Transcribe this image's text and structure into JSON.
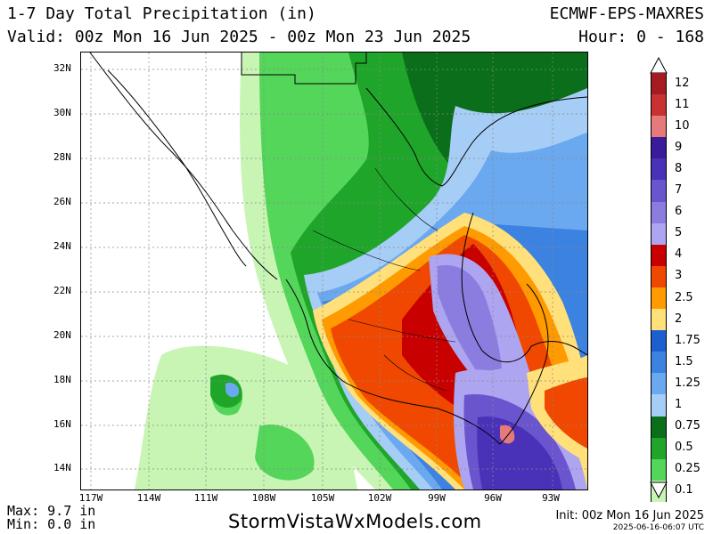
{
  "header": {
    "title": "1-7 Day Total Precipitation (in)",
    "valid": "Valid: 00z Mon 16 Jun 2025 - 00z Mon 23 Jun 2025",
    "model": "ECMWF-EPS-MAXRES",
    "hour": "Hour: 0 - 168"
  },
  "lat_labels": [
    "32N",
    "30N",
    "28N",
    "26N",
    "24N",
    "22N",
    "20N",
    "18N",
    "16N",
    "14N"
  ],
  "lon_labels": [
    "117W",
    "114W",
    "111W",
    "108W",
    "105W",
    "102W",
    "99W",
    "96W",
    "93W"
  ],
  "colorbar": {
    "items": [
      {
        "label": "12",
        "color": "#a61b22"
      },
      {
        "label": "11",
        "color": "#c83232"
      },
      {
        "label": "10",
        "color": "#e67a7a"
      },
      {
        "label": "9",
        "color": "#3a1b9a"
      },
      {
        "label": "8",
        "color": "#4a32b8"
      },
      {
        "label": "7",
        "color": "#6a55cf"
      },
      {
        "label": "6",
        "color": "#8b7ce0"
      },
      {
        "label": "5",
        "color": "#aea5f0"
      },
      {
        "label": "4",
        "color": "#c80000"
      },
      {
        "label": "3",
        "color": "#f04800"
      },
      {
        "label": "2.5",
        "color": "#ff9a00"
      },
      {
        "label": "2",
        "color": "#ffe07a"
      },
      {
        "label": "1.75",
        "color": "#1e5fd0"
      },
      {
        "label": "1.5",
        "color": "#3c82e0"
      },
      {
        "label": "1.25",
        "color": "#6aa8f0"
      },
      {
        "label": "1",
        "color": "#a6cdf5"
      },
      {
        "label": "0.75",
        "color": "#0a6e1a"
      },
      {
        "label": "0.5",
        "color": "#1fa62a"
      },
      {
        "label": "0.25",
        "color": "#54d65a"
      },
      {
        "label": "0.1",
        "color": "#c8f5b4"
      }
    ]
  },
  "footer": {
    "max": "Max: 9.7 in",
    "min": "Min: 0.0 in",
    "site": "StormVistaWxModels.com",
    "init": "Init: 00z Mon 16 Jun 2025",
    "timestamp": "2025-06-16-06:07 UTC"
  }
}
